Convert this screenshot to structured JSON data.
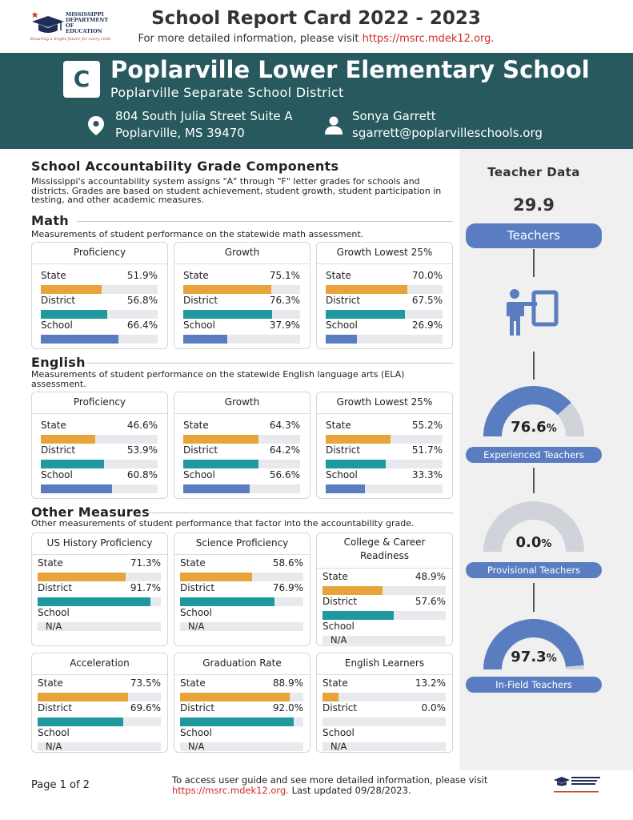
{
  "header": {
    "logo_lines": [
      "MISSISSIPPI",
      "DEPARTMENT OF",
      "EDUCATION"
    ],
    "logo_tagline": "Ensuring a bright future for every child",
    "title": "School Report Card 2022 - 2023",
    "subtitle_prefix": "For more detailed information, please visit ",
    "subtitle_link": "https://msrc.mdek12.org."
  },
  "school": {
    "grade": "C",
    "name": "Poplarville Lower Elementary School",
    "district": "Poplarville Separate School District",
    "address_line1": "804 South Julia Street Suite A",
    "address_line2": "Poplarville, MS 39470",
    "contact_name": "Sonya Garrett",
    "contact_email": "sgarrett@poplarvilleschools.org"
  },
  "accountability": {
    "heading": "School Accountability Grade Components",
    "description": "Mississippi's accountability system assigns \"A\" through \"F\" letter grades for schools and districts. Grades are based on student achievement, student growth, student participation in testing, and other academic measures."
  },
  "math": {
    "heading": "Math",
    "description": "Measurements of student performance on the statewide math assessment.",
    "cards": [
      {
        "title": "Proficiency",
        "rows": [
          {
            "label": "State",
            "value": "51.9%",
            "pct": 51.9
          },
          {
            "label": "District",
            "value": "56.8%",
            "pct": 56.8
          },
          {
            "label": "School",
            "value": "66.4%",
            "pct": 66.4
          }
        ]
      },
      {
        "title": "Growth",
        "rows": [
          {
            "label": "State",
            "value": "75.1%",
            "pct": 75.1
          },
          {
            "label": "District",
            "value": "76.3%",
            "pct": 76.3
          },
          {
            "label": "School",
            "value": "37.9%",
            "pct": 37.9
          }
        ]
      },
      {
        "title": "Growth Lowest 25%",
        "rows": [
          {
            "label": "State",
            "value": "70.0%",
            "pct": 70.0
          },
          {
            "label": "District",
            "value": "67.5%",
            "pct": 67.5
          },
          {
            "label": "School",
            "value": "26.9%",
            "pct": 26.9
          }
        ]
      }
    ]
  },
  "english": {
    "heading": "English",
    "description": "Measurements of student performance on the statewide English language arts (ELA) assessment.",
    "cards": [
      {
        "title": "Proficiency",
        "rows": [
          {
            "label": "State",
            "value": "46.6%",
            "pct": 46.6
          },
          {
            "label": "District",
            "value": "53.9%",
            "pct": 53.9
          },
          {
            "label": "School",
            "value": "60.8%",
            "pct": 60.8
          }
        ]
      },
      {
        "title": "Growth",
        "rows": [
          {
            "label": "State",
            "value": "64.3%",
            "pct": 64.3
          },
          {
            "label": "District",
            "value": "64.2%",
            "pct": 64.2
          },
          {
            "label": "School",
            "value": "56.6%",
            "pct": 56.6
          }
        ]
      },
      {
        "title": "Growth Lowest 25%",
        "rows": [
          {
            "label": "State",
            "value": "55.2%",
            "pct": 55.2
          },
          {
            "label": "District",
            "value": "51.7%",
            "pct": 51.7
          },
          {
            "label": "School",
            "value": "33.3%",
            "pct": 33.3
          }
        ]
      }
    ]
  },
  "other": {
    "heading": "Other Measures",
    "description": "Other measurements of student performance that factor into the accountability grade.",
    "cards": [
      {
        "title": "US History Proficiency",
        "rows": [
          {
            "label": "State",
            "value": "71.3%",
            "pct": 71.3
          },
          {
            "label": "District",
            "value": "91.7%",
            "pct": 91.7
          },
          {
            "label": "School",
            "value": "",
            "na": "N/A"
          }
        ]
      },
      {
        "title": "Science Proficiency",
        "rows": [
          {
            "label": "State",
            "value": "58.6%",
            "pct": 58.6
          },
          {
            "label": "District",
            "value": "76.9%",
            "pct": 76.9
          },
          {
            "label": "School",
            "value": "",
            "na": "N/A"
          }
        ]
      },
      {
        "title": "College & Career Readiness",
        "rows": [
          {
            "label": "State",
            "value": "48.9%",
            "pct": 48.9
          },
          {
            "label": "District",
            "value": "57.6%",
            "pct": 57.6
          },
          {
            "label": "School",
            "value": "",
            "na": "N/A"
          }
        ]
      },
      {
        "title": "Acceleration",
        "rows": [
          {
            "label": "State",
            "value": "73.5%",
            "pct": 73.5
          },
          {
            "label": "District",
            "value": "69.6%",
            "pct": 69.6
          },
          {
            "label": "School",
            "value": "",
            "na": "N/A"
          }
        ]
      },
      {
        "title": "Graduation Rate",
        "rows": [
          {
            "label": "State",
            "value": "88.9%",
            "pct": 88.9
          },
          {
            "label": "District",
            "value": "92.0%",
            "pct": 92.0
          },
          {
            "label": "School",
            "value": "",
            "na": "N/A"
          }
        ]
      },
      {
        "title": "English Learners",
        "rows": [
          {
            "label": "State",
            "value": "13.2%",
            "pct": 13.2
          },
          {
            "label": "District",
            "value": "0.0%",
            "pct": 0.0
          },
          {
            "label": "School",
            "value": "",
            "na": "N/A"
          }
        ]
      }
    ]
  },
  "teacher_data": {
    "title": "Teacher Data",
    "count": "29.9",
    "count_label": "Teachers",
    "gauges": [
      {
        "value": "76.6",
        "unit": "%",
        "pct": 76.6,
        "label": "Experienced Teachers"
      },
      {
        "value": "0.0",
        "unit": "%",
        "pct": 0.0,
        "label": "Provisional Teachers"
      },
      {
        "value": "97.3",
        "unit": "%",
        "pct": 97.3,
        "label": "In-Field Teachers"
      }
    ]
  },
  "colors": {
    "banner": "#27595f",
    "state": "#e8a33a",
    "district": "#20999e",
    "school": "#5a7dc2",
    "gauge_bg": "#d0d4da",
    "link": "#d42a2a"
  },
  "footer": {
    "page": "Page 1 of 2",
    "text_prefix": "To access user guide and see more detailed information, please visit ",
    "link": "https://msrc.mdek12.org.",
    "text_suffix": " Last updated 09/28/2023."
  }
}
